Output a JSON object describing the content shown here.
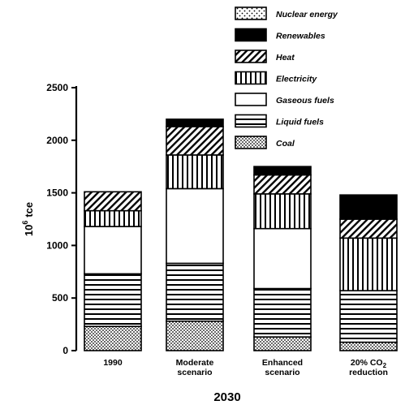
{
  "chart_data": {
    "type": "bar",
    "stacked": true,
    "ylabel_base": "10",
    "ylabel_exp": "6",
    "ylabel_unit": "tce",
    "ylim": [
      0,
      2500
    ],
    "yticks": [
      "0",
      "500",
      "1000",
      "1500",
      "2000",
      "2500"
    ],
    "group_label": "2030",
    "categories": [
      {
        "lines": [
          "1990"
        ]
      },
      {
        "lines": [
          "Moderate",
          "scenario"
        ]
      },
      {
        "lines": [
          "Enhanced",
          "scenario"
        ]
      },
      {
        "lines": [
          "20% CO",
          "reduction"
        ],
        "subscript": "2"
      }
    ],
    "legend_placement": "top-right",
    "grid": false,
    "series": [
      {
        "name": "Coal",
        "pattern": "dots-dense",
        "values": [
          230,
          280,
          130,
          80
        ]
      },
      {
        "name": "Liquid fuels",
        "pattern": "horizontal",
        "values": [
          500,
          550,
          460,
          490
        ]
      },
      {
        "name": "Gaseous fuels",
        "pattern": "empty",
        "values": [
          450,
          710,
          570,
          0
        ]
      },
      {
        "name": "Electricity",
        "pattern": "vertical",
        "values": [
          150,
          320,
          330,
          500
        ]
      },
      {
        "name": "Heat",
        "pattern": "diagonal",
        "values": [
          180,
          270,
          180,
          180
        ]
      },
      {
        "name": "Renewables",
        "pattern": "solid",
        "values": [
          0,
          70,
          80,
          230
        ]
      },
      {
        "name": "Nuclear energy",
        "pattern": "dots-sparse",
        "values": [
          0,
          0,
          0,
          0
        ]
      }
    ],
    "legend_order": [
      "Nuclear energy",
      "Renewables",
      "Heat",
      "Electricity",
      "Gaseous fuels",
      "Liquid fuels",
      "Coal"
    ]
  }
}
